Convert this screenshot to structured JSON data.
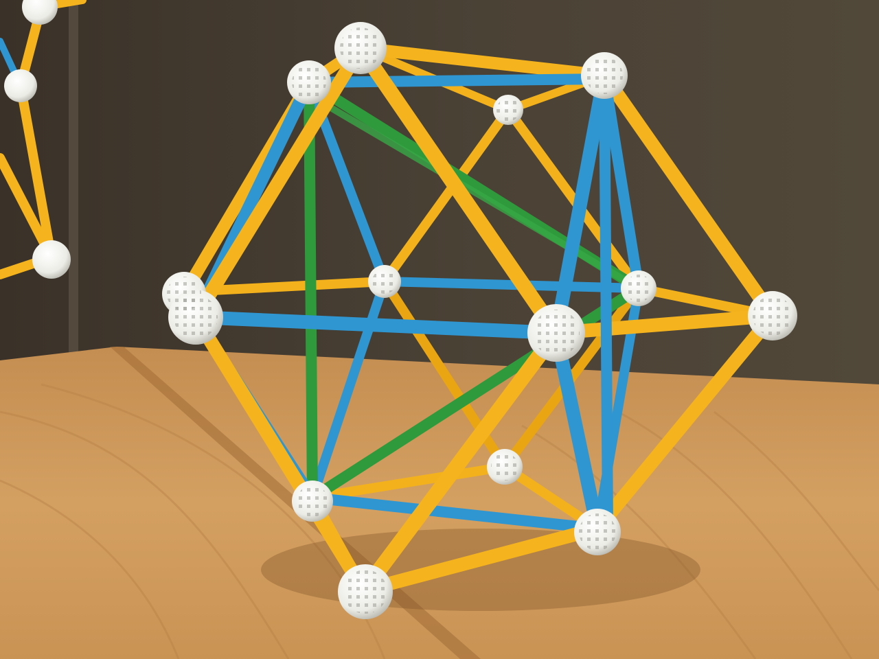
{
  "scene": {
    "subject": "zometool-icosahedron-model",
    "colors": {
      "wall_left": "#3d352b",
      "wall_right": "#4e463a",
      "wall_corner": "#6a6050",
      "table_light": "#d9a769",
      "table_dark": "#b07a43",
      "strut_yellow": "#f5b41d",
      "strut_yellow_shade": "#c98a0a",
      "strut_blue": "#2f96d2",
      "strut_blue_shade": "#1f6fa3",
      "strut_green": "#2e9a3c",
      "strut_green_shade": "#1f6e2a",
      "node_white": "#f4f4f0",
      "node_shadow": "#b9b9b2"
    },
    "icons": {
      "connector_node": "zome-ball-icon"
    }
  }
}
